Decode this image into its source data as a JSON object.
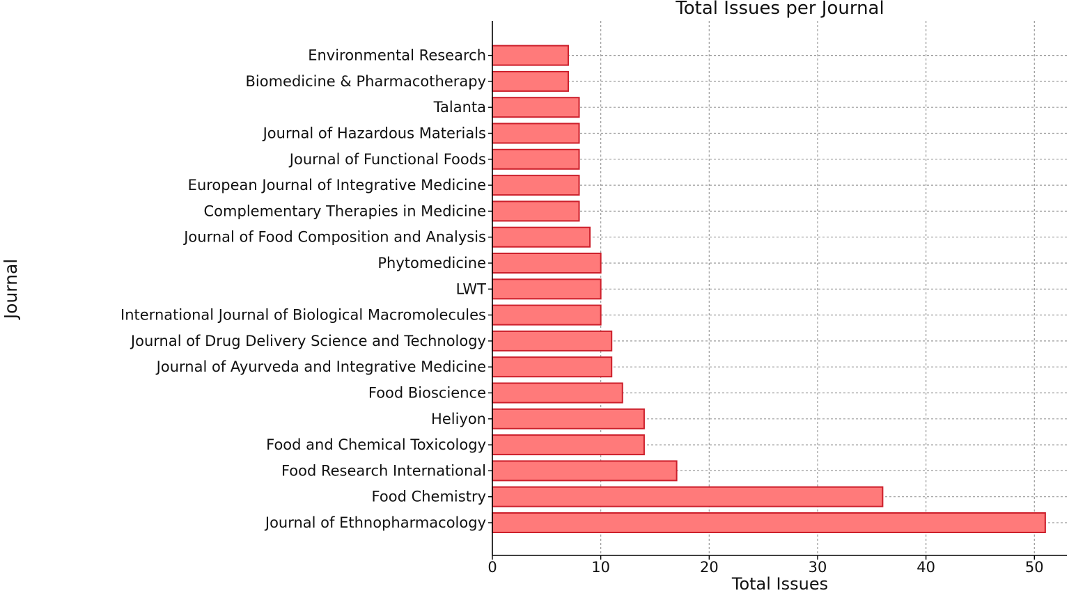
{
  "chart_data": {
    "type": "bar",
    "orientation": "horizontal",
    "title": "Total Issues per Journal",
    "xlabel": "Total Issues",
    "ylabel": "Journal",
    "xlim": [
      0,
      53
    ],
    "xticks": [
      0,
      10,
      20,
      30,
      40,
      50
    ],
    "grid": true,
    "bar_color": "#ff7a7a",
    "bar_edge_color": "#cc1f2b",
    "categories": [
      "Journal of Ethnopharmacology",
      "Food Chemistry",
      "Food Research International",
      "Food and Chemical Toxicology",
      "Heliyon",
      "Food Bioscience",
      "Journal of Ayurveda and Integrative Medicine",
      "Journal of Drug Delivery Science and Technology",
      "International Journal of Biological Macromolecules",
      "LWT",
      "Phytomedicine",
      "Journal of Food Composition and Analysis",
      "Complementary Therapies in Medicine",
      "European Journal of Integrative Medicine",
      "Journal of Functional Foods",
      "Journal of Hazardous Materials",
      "Talanta",
      "Biomedicine & Pharmacotherapy",
      "Environmental Research"
    ],
    "values": [
      51,
      36,
      17,
      14,
      14,
      12,
      11,
      11,
      10,
      10,
      10,
      9,
      8,
      8,
      8,
      8,
      8,
      7,
      7
    ]
  }
}
